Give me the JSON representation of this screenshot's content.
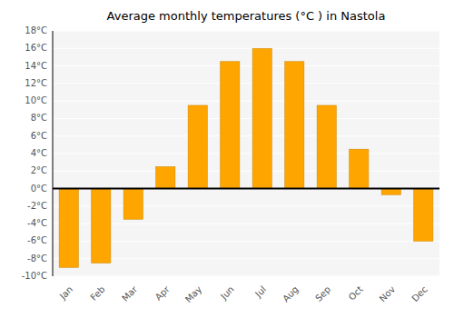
{
  "chart_data": {
    "type": "bar",
    "title": "Average monthly temperatures (°C ) in Nastola",
    "categories": [
      "Jan",
      "Feb",
      "Mar",
      "Apr",
      "May",
      "Jun",
      "Jul",
      "Aug",
      "Sep",
      "Oct",
      "Nov",
      "Dec"
    ],
    "values": [
      -9.0,
      -8.5,
      -3.5,
      2.5,
      9.5,
      14.5,
      16.0,
      14.5,
      9.5,
      4.5,
      -0.7,
      -6.0
    ],
    "color": "#FFA500",
    "ylim": [
      -10,
      18
    ],
    "yticks": [
      {
        "value": -10,
        "label": "-10°C"
      },
      {
        "value": -8,
        "label": "-8°C"
      },
      {
        "value": -6,
        "label": "-6°C"
      },
      {
        "value": -4,
        "label": "-4°C"
      },
      {
        "value": -2,
        "label": "-2°C"
      },
      {
        "value": 0,
        "label": "0°C"
      },
      {
        "value": 2,
        "label": "2°C"
      },
      {
        "value": 4,
        "label": "4°C"
      },
      {
        "value": 6,
        "label": "6°C"
      },
      {
        "value": 8,
        "label": "8°C"
      },
      {
        "value": 10,
        "label": "10°C"
      },
      {
        "value": 12,
        "label": "12°C"
      },
      {
        "value": 14,
        "label": "14°C"
      },
      {
        "value": 16,
        "label": "16°C"
      },
      {
        "value": 18,
        "label": "18°C"
      }
    ],
    "grid": true
  }
}
